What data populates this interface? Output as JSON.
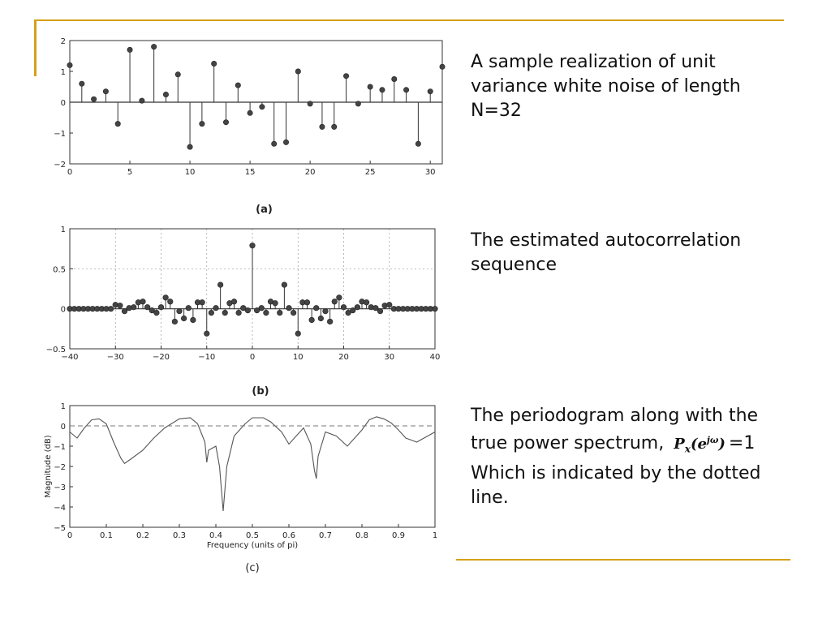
{
  "captions": {
    "a": "A sample realization of unit variance white noise of length N=32",
    "b": "The estimated autocorrelation sequence",
    "c_prefix": "The periodogram along with the true power spectrum,",
    "c_formula_base": "P",
    "c_formula_sub": "x",
    "c_formula_arg": "(e",
    "c_formula_sup": "jω",
    "c_formula_close": ")",
    "c_formula_eq": "=1",
    "c_suffix": "Which is indicated by the dotted line."
  },
  "colors": {
    "accent": "#d4a017",
    "ink": "#333333"
  },
  "chart_data": [
    {
      "id": "a",
      "type": "stem",
      "panel_label": "(a)",
      "title": "",
      "xlabel": "",
      "ylabel": "",
      "xlim": [
        0,
        31
      ],
      "ylim": [
        -2,
        2
      ],
      "xticks": [
        0,
        5,
        10,
        15,
        20,
        25,
        30
      ],
      "yticks": [
        -2,
        -1,
        0,
        1,
        2
      ],
      "grid": false,
      "x": [
        0,
        1,
        2,
        3,
        4,
        5,
        6,
        7,
        8,
        9,
        10,
        11,
        12,
        13,
        14,
        15,
        16,
        17,
        18,
        19,
        20,
        21,
        22,
        23,
        24,
        25,
        26,
        27,
        28,
        29,
        30,
        31
      ],
      "y": [
        1.2,
        0.6,
        0.1,
        0.35,
        -0.7,
        1.7,
        0.05,
        1.8,
        0.25,
        0.9,
        -1.45,
        -0.7,
        1.25,
        -0.65,
        0.55,
        -0.35,
        -0.15,
        -1.35,
        -1.3,
        1.0,
        -0.05,
        -0.8,
        -0.8,
        0.85,
        -0.05,
        0.5,
        0.4,
        0.75,
        0.4,
        -1.35,
        0.35,
        1.15
      ]
    },
    {
      "id": "b",
      "type": "stem",
      "panel_label": "(b)",
      "title": "",
      "xlabel": "",
      "ylabel": "",
      "xlim": [
        -40,
        40
      ],
      "ylim": [
        -0.5,
        1
      ],
      "xticks": [
        -40,
        -30,
        -20,
        -10,
        0,
        10,
        20,
        30,
        40
      ],
      "yticks": [
        -0.5,
        0,
        0.5,
        1
      ],
      "grid": true,
      "x": [
        -40,
        -39,
        -38,
        -37,
        -36,
        -35,
        -34,
        -33,
        -32,
        -31,
        -30,
        -29,
        -28,
        -27,
        -26,
        -25,
        -24,
        -23,
        -22,
        -21,
        -20,
        -19,
        -18,
        -17,
        -16,
        -15,
        -14,
        -13,
        -12,
        -11,
        -10,
        -9,
        -8,
        -7,
        -6,
        -5,
        -4,
        -3,
        -2,
        -1,
        0,
        1,
        2,
        3,
        4,
        5,
        6,
        7,
        8,
        9,
        10,
        11,
        12,
        13,
        14,
        15,
        16,
        17,
        18,
        19,
        20,
        21,
        22,
        23,
        24,
        25,
        26,
        27,
        28,
        29,
        30,
        31,
        32,
        33,
        34,
        35,
        36,
        37,
        38,
        39,
        40
      ],
      "y": [
        0,
        0,
        0,
        0,
        0,
        0,
        0,
        0,
        0,
        0,
        0.05,
        0.04,
        -0.03,
        0.01,
        0.02,
        0.08,
        0.09,
        0.02,
        -0.02,
        -0.05,
        0.02,
        0.14,
        0.09,
        -0.16,
        -0.03,
        -0.12,
        0.01,
        -0.14,
        0.08,
        0.08,
        -0.31,
        -0.05,
        0.01,
        0.3,
        -0.05,
        0.07,
        0.09,
        -0.05,
        0.01,
        -0.02,
        0.79,
        -0.02,
        0.01,
        -0.05,
        0.09,
        0.07,
        -0.05,
        0.3,
        0.01,
        -0.05,
        -0.31,
        0.08,
        0.08,
        -0.14,
        0.01,
        -0.12,
        -0.03,
        -0.16,
        0.09,
        0.14,
        0.02,
        -0.05,
        -0.02,
        0.02,
        0.09,
        0.08,
        0.02,
        0.01,
        -0.03,
        0.04,
        0.05,
        0,
        0,
        0,
        0,
        0,
        0,
        0,
        0,
        0,
        0
      ]
    },
    {
      "id": "c",
      "type": "line",
      "panel_label": "(c)",
      "title": "",
      "xlabel": "Frequency (units of pi)",
      "ylabel": "Magnitude (dB)",
      "xlim": [
        0,
        1
      ],
      "ylim": [
        -5,
        1
      ],
      "xticks": [
        0,
        0.1,
        0.2,
        0.3,
        0.4,
        0.5,
        0.6,
        0.7,
        0.8,
        0.9,
        1
      ],
      "yticks": [
        -5,
        -4,
        -3,
        -2,
        -1,
        0,
        1
      ],
      "grid": false,
      "series": [
        {
          "style": "solid",
          "x": [
            0,
            0.02,
            0.04,
            0.06,
            0.08,
            0.1,
            0.12,
            0.14,
            0.15,
            0.17,
            0.2,
            0.23,
            0.26,
            0.3,
            0.33,
            0.35,
            0.37,
            0.375,
            0.38,
            0.4,
            0.41,
            0.42,
            0.43,
            0.45,
            0.48,
            0.5,
            0.53,
            0.55,
            0.58,
            0.6,
            0.62,
            0.64,
            0.66,
            0.67,
            0.675,
            0.68,
            0.7,
            0.73,
            0.76,
            0.8,
            0.82,
            0.84,
            0.86,
            0.88,
            0.9,
            0.92,
            0.95,
            0.97,
            1.0
          ],
          "y": [
            -0.3,
            -0.6,
            -0.1,
            0.3,
            0.35,
            0.1,
            -0.8,
            -1.6,
            -1.85,
            -1.6,
            -1.2,
            -0.6,
            -0.1,
            0.35,
            0.4,
            0.1,
            -0.8,
            -1.8,
            -1.2,
            -1.0,
            -2.0,
            -4.2,
            -2.0,
            -0.5,
            0.1,
            0.4,
            0.4,
            0.2,
            -0.3,
            -0.9,
            -0.5,
            -0.1,
            -0.9,
            -2.2,
            -2.6,
            -1.5,
            -0.3,
            -0.5,
            -1.0,
            -0.2,
            0.3,
            0.45,
            0.35,
            0.15,
            -0.2,
            -0.6,
            -0.8,
            -0.6,
            -0.3
          ]
        },
        {
          "style": "dashed",
          "x": [
            0,
            1
          ],
          "y": [
            0,
            0
          ]
        }
      ]
    }
  ]
}
